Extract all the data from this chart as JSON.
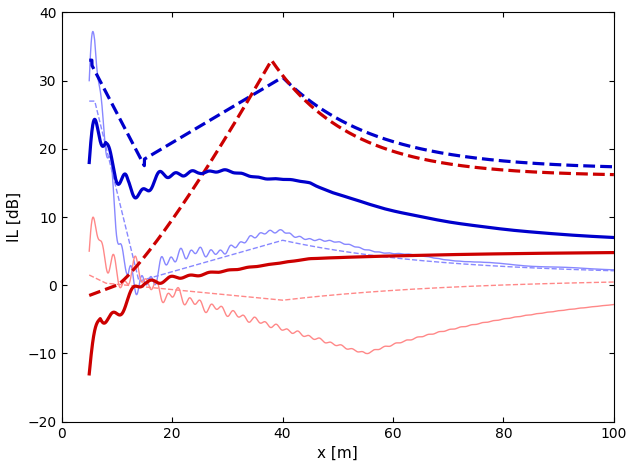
{
  "title": "",
  "xlabel": "x [m]",
  "ylabel": "IL [dB]",
  "xlim": [
    0,
    100
  ],
  "ylim": [
    -20,
    40
  ],
  "xticks": [
    0,
    20,
    40,
    60,
    80,
    100
  ],
  "yticks": [
    -20,
    -10,
    0,
    10,
    20,
    30,
    40
  ],
  "figsize": [
    6.34,
    4.68
  ],
  "dpi": 100,
  "background": "#ffffff"
}
